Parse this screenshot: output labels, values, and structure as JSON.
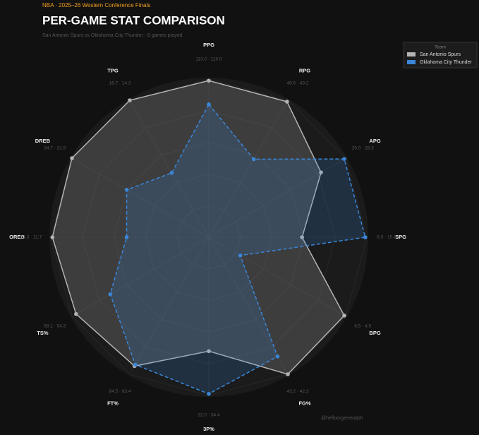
{
  "chart_data": {
    "type": "radar",
    "kicker": "NBA · 2025–26 Western Conference Finals",
    "title": "PER-GAME STAT COMPARISON",
    "subtitle": "San Antonio Spurs vs Oklahoma City Thunder · 6 games played",
    "categories": [
      "PPG",
      "RPG",
      "APG",
      "SPG",
      "BPG",
      "FG%",
      "3P%",
      "FT%",
      "TS%",
      "OREB",
      "DREB",
      "TPG"
    ],
    "category_values": [
      "113.0 · 110.0",
      "48.6 · 43.2",
      "29.0 · 26.3",
      "8.3 · 10.8",
      "6.5 · 4.5",
      "43.2 · 42.3",
      "32.0 · 34.4",
      "84.5 · 83.4",
      "58.1 · 54.3",
      "13.3 · 11.7",
      "34.7 · 31.9",
      "16.7 · 14.3"
    ],
    "rlim": [
      0,
      1
    ],
    "legend_title": "Team",
    "legend_position": "upper right",
    "series": [
      {
        "name": "San Antonio Spurs",
        "color": "#b4b4b4",
        "dash": false,
        "values": [
          0.99,
          0.99,
          0.82,
          0.59,
          0.99,
          1.0,
          0.72,
          0.94,
          0.97,
          0.99,
          1.0,
          1.0
        ]
      },
      {
        "name": "Oklahoma City Thunder",
        "color": "#3a86d8",
        "dash": true,
        "values": [
          0.84,
          0.57,
          0.99,
          0.99,
          0.23,
          0.87,
          0.99,
          0.93,
          0.72,
          0.52,
          0.6,
          0.47
        ]
      }
    ],
    "credit": "@hefloorgeneralph"
  }
}
